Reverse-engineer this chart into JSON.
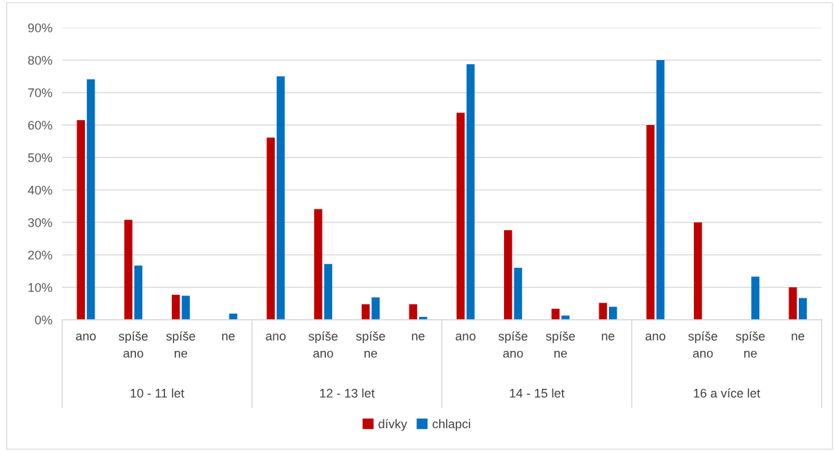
{
  "chart_data": {
    "type": "bar",
    "categories": [
      "ano",
      "spíše ano",
      "spíše ne",
      "ne",
      "ano",
      "spíše ano",
      "spíše ne",
      "ne",
      "ano",
      "spíše ano",
      "spíše ne",
      "ne",
      "ano",
      "spíše ano",
      "spíše ne",
      "ne"
    ],
    "series": [
      {
        "name": "dívky",
        "color": "#c00000",
        "values": [
          61.5,
          30.8,
          7.7,
          0,
          56.1,
          34.1,
          4.8,
          4.8,
          63.8,
          27.6,
          3.4,
          5.2,
          60,
          30,
          0,
          10
        ]
      },
      {
        "name": "chlapci",
        "color": "#0070c0",
        "values": [
          74.1,
          16.7,
          7.4,
          1.9,
          75.0,
          17.2,
          6.9,
          0.9,
          78.7,
          16.0,
          1.3,
          4.0,
          80,
          0,
          13.3,
          6.7
        ]
      }
    ],
    "annotations": [
      "10 - 11 let",
      "12 - 13 let",
      "14 - 15 let",
      "16 a více let"
    ],
    "ylim": [
      0,
      90
    ],
    "yticks": [
      {
        "value": 0,
        "label": "0%"
      },
      {
        "value": 10,
        "label": "10%"
      },
      {
        "value": 20,
        "label": "20%"
      },
      {
        "value": 30,
        "label": "30%"
      },
      {
        "value": 40,
        "label": "40%"
      },
      {
        "value": 50,
        "label": "50%"
      },
      {
        "value": 60,
        "label": "60%"
      },
      {
        "value": 70,
        "label": "70%"
      },
      {
        "value": 80,
        "label": "80%"
      },
      {
        "value": 90,
        "label": "90%"
      }
    ],
    "grid": "y",
    "legend": "bottom"
  }
}
